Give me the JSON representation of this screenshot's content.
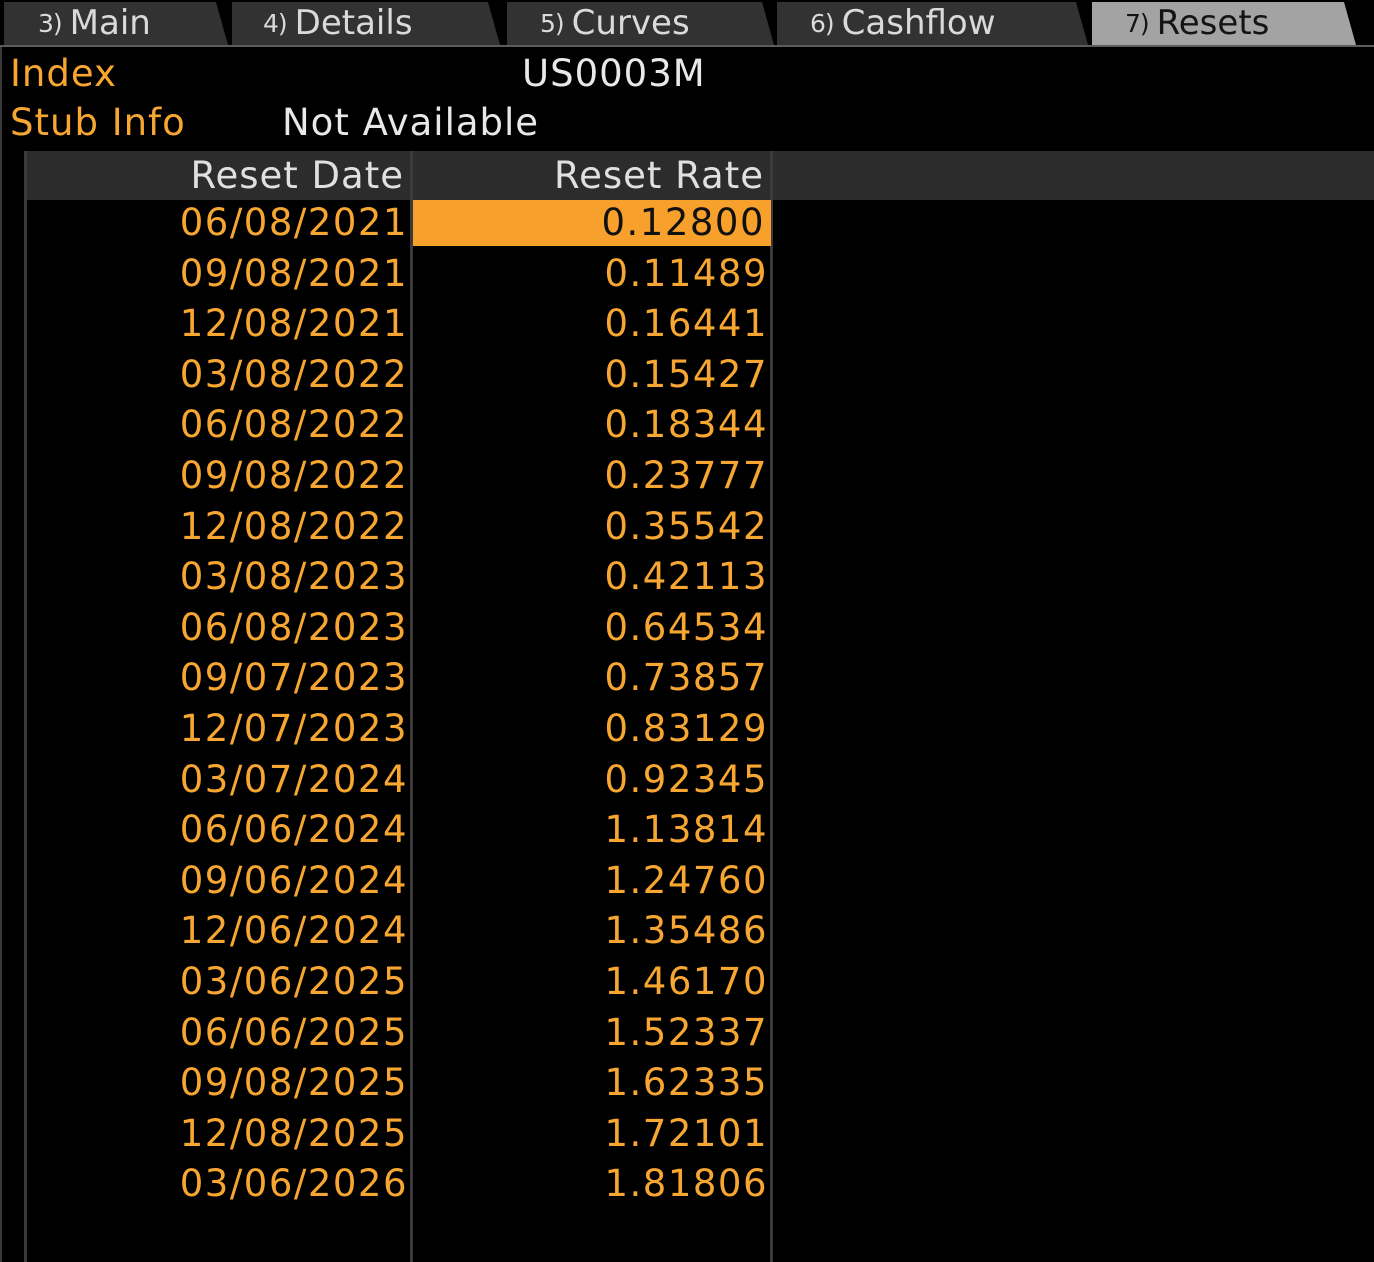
{
  "tabs": [
    {
      "num": "3)",
      "label": "Main"
    },
    {
      "num": "4)",
      "label": "Details"
    },
    {
      "num": "5)",
      "label": "Curves"
    },
    {
      "num": "6)",
      "label": "Cashflow"
    },
    {
      "num": "7)",
      "label": "Resets",
      "active": true
    }
  ],
  "info": {
    "index_label": "Index",
    "index_value": "US0003M",
    "stub_label": "Stub Info",
    "stub_value": "Not Available"
  },
  "table": {
    "columns": [
      "Reset Date",
      "Reset Rate"
    ],
    "selected_row": 0,
    "rows": [
      {
        "date": "06/08/2021",
        "rate": "0.12800"
      },
      {
        "date": "09/08/2021",
        "rate": "0.11489"
      },
      {
        "date": "12/08/2021",
        "rate": "0.16441"
      },
      {
        "date": "03/08/2022",
        "rate": "0.15427"
      },
      {
        "date": "06/08/2022",
        "rate": "0.18344"
      },
      {
        "date": "09/08/2022",
        "rate": "0.23777"
      },
      {
        "date": "12/08/2022",
        "rate": "0.35542"
      },
      {
        "date": "03/08/2023",
        "rate": "0.42113"
      },
      {
        "date": "06/08/2023",
        "rate": "0.64534"
      },
      {
        "date": "09/07/2023",
        "rate": "0.73857"
      },
      {
        "date": "12/07/2023",
        "rate": "0.83129"
      },
      {
        "date": "03/07/2024",
        "rate": "0.92345"
      },
      {
        "date": "06/06/2024",
        "rate": "1.13814"
      },
      {
        "date": "09/06/2024",
        "rate": "1.24760"
      },
      {
        "date": "12/06/2024",
        "rate": "1.35486"
      },
      {
        "date": "03/06/2025",
        "rate": "1.46170"
      },
      {
        "date": "06/06/2025",
        "rate": "1.52337"
      },
      {
        "date": "09/08/2025",
        "rate": "1.62335"
      },
      {
        "date": "12/08/2025",
        "rate": "1.72101"
      },
      {
        "date": "03/06/2026",
        "rate": "1.81806"
      }
    ]
  },
  "colors": {
    "accent_orange": "#f7a631",
    "selected_fill": "#f7a12c",
    "header_bg": "#2c2c2c",
    "active_tab_bg": "#a3a3a3",
    "inactive_tab_bg": "#323232"
  }
}
